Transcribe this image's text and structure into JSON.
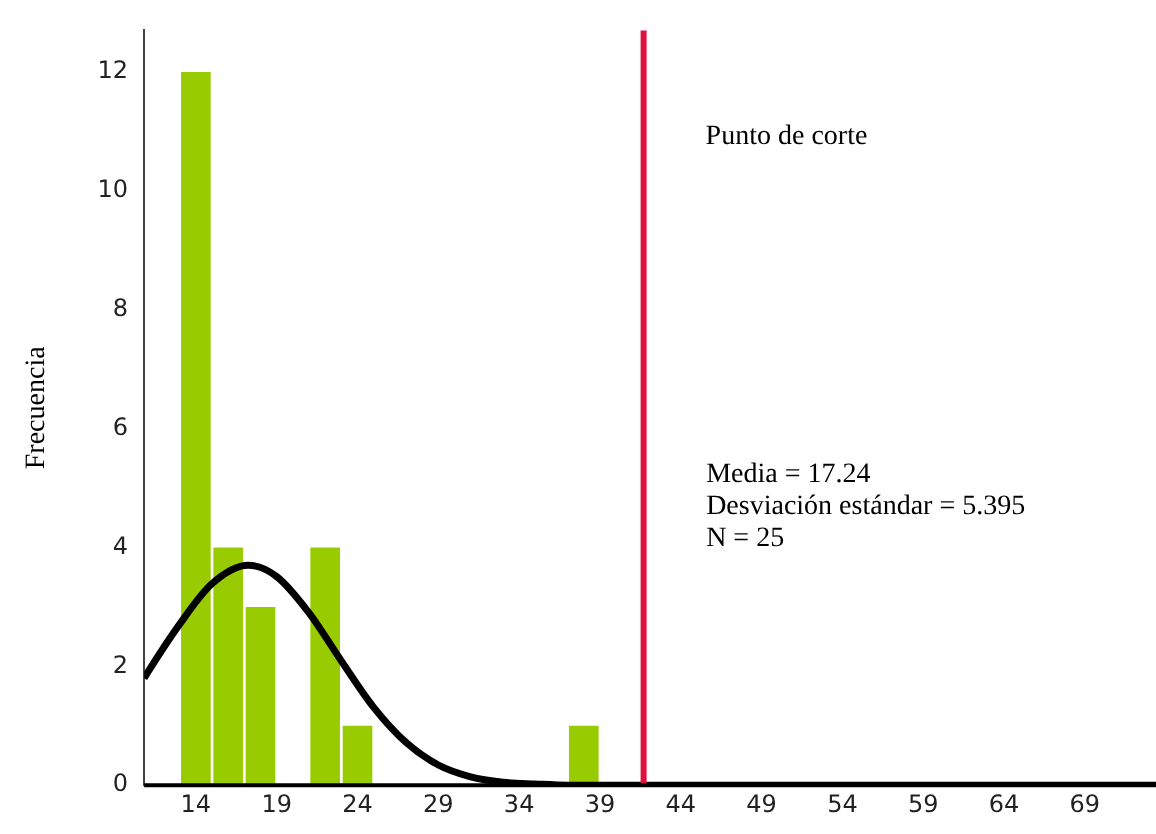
{
  "chart_data": {
    "type": "histogram",
    "ylabel": "Frecuencia",
    "bins": [
      13,
      15,
      17,
      19,
      21,
      23,
      25,
      27,
      29,
      31,
      33,
      35,
      37,
      39
    ],
    "values": [
      12,
      4,
      3,
      0,
      4,
      1,
      0,
      0,
      0,
      0,
      0,
      0,
      1
    ],
    "color": "#99cc00",
    "series": [
      {
        "type": "line",
        "color": "#000000",
        "x": [
          10.8,
          11,
          13,
          15,
          17.24,
          19,
          21,
          23,
          25,
          27,
          29,
          31,
          33,
          35,
          37,
          40,
          50,
          60,
          73.4
        ],
        "values": [
          1.8,
          1.89,
          2.71,
          3.39,
          3.7,
          3.51,
          2.9,
          2.09,
          1.31,
          0.72,
          0.34,
          0.14,
          0.05,
          0.02,
          0,
          0,
          0,
          0,
          0
        ]
      }
    ],
    "xlim": [
      10.8,
      73.4
    ],
    "ylim": [
      0,
      12.7
    ],
    "xticks": [
      14,
      19,
      24,
      29,
      34,
      39,
      44,
      49,
      54,
      59,
      64,
      69
    ],
    "yticks": [
      0,
      2,
      4,
      6,
      8,
      10,
      12
    ],
    "ref_lines": [
      {
        "axis": "x",
        "value": 41.7,
        "label": "Punto de corte",
        "color": "#e0103f"
      }
    ],
    "annotations": [
      "Media = 17.24",
      "Desviación estándar = 5.395",
      "N = 25"
    ],
    "grid": false,
    "legend": false,
    "marker": "none",
    "line_style": "solid"
  }
}
